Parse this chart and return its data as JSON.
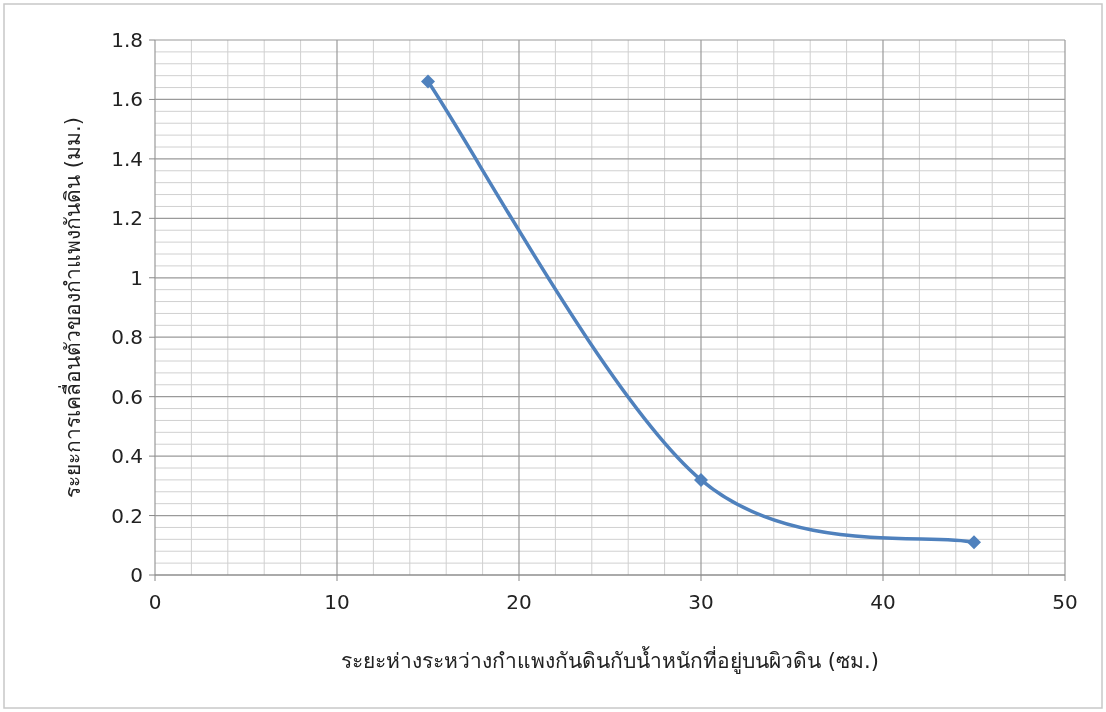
{
  "chart_data": {
    "type": "line",
    "xlabel": "ระยะห่างระหว่างกำแพงกันดินกับน้ำหนักที่อยู่บนผิวดิน (ซม.)",
    "ylabel": "ระยะการเคลื่อนตัวของกำแพงกันดิน (มม.)",
    "x": [
      15,
      30,
      45
    ],
    "series": [
      {
        "color": "#4f81bd",
        "values": [
          1.66,
          0.32,
          0.11
        ]
      }
    ],
    "xlim": [
      0,
      50
    ],
    "xticks": [
      0,
      10,
      20,
      30,
      40,
      50
    ],
    "ylim": [
      0,
      1.8
    ],
    "yticks": [
      0,
      0.2,
      0.4,
      0.6,
      0.8,
      1,
      1.2,
      1.4,
      1.6,
      1.8
    ],
    "grid": true,
    "marker": "diamond",
    "line_style": "solid"
  }
}
